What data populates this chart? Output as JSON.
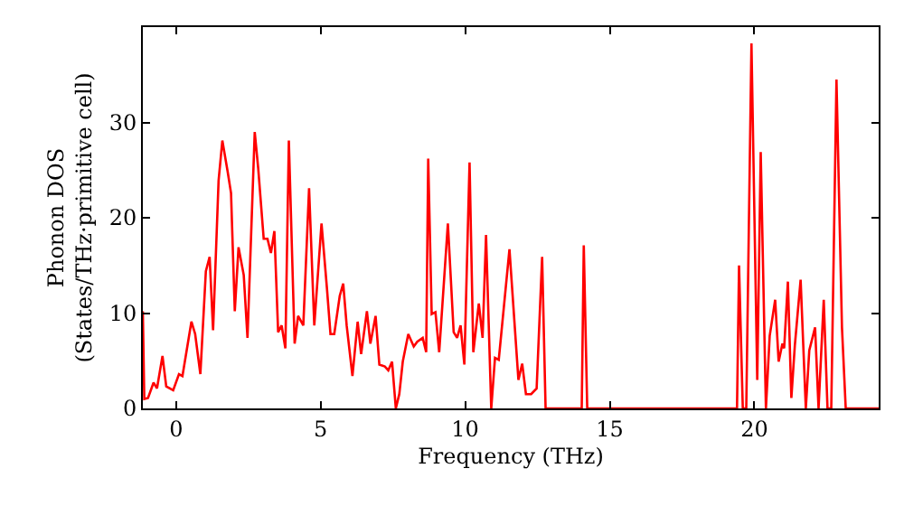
{
  "chart_data": {
    "type": "line",
    "xlabel": "Frequency (THz)",
    "ylabel": "Phonon DOS\n(States/THz·primitive cell)",
    "xlim": [
      -1.15,
      24.3
    ],
    "ylim": [
      0,
      40
    ],
    "xticks": [
      0,
      5,
      10,
      15,
      20
    ],
    "yticks": [
      0,
      10,
      20,
      30
    ],
    "marker": "none",
    "line_style": "solid",
    "series": [
      {
        "color": "#ff0000",
        "x": [
          -1.15,
          -1.1,
          -0.97,
          -0.78,
          -0.66,
          -0.47,
          -0.34,
          -0.1,
          0.1,
          0.22,
          0.53,
          0.66,
          0.84,
          1.03,
          1.16,
          1.28,
          1.47,
          1.6,
          1.78,
          1.9,
          2.03,
          2.16,
          2.34,
          2.47,
          2.72,
          2.84,
          3.03,
          3.16,
          3.28,
          3.4,
          3.53,
          3.65,
          3.78,
          3.9,
          4.1,
          4.22,
          4.4,
          4.6,
          4.78,
          5.03,
          5.22,
          5.34,
          5.47,
          5.66,
          5.78,
          5.9,
          6.1,
          6.28,
          6.4,
          6.6,
          6.72,
          6.9,
          7.03,
          7.22,
          7.34,
          7.47,
          7.6,
          7.72,
          7.84,
          8.03,
          8.22,
          8.34,
          8.53,
          8.65,
          8.72,
          8.84,
          8.97,
          9.1,
          9.4,
          9.6,
          9.72,
          9.84,
          9.97,
          10.15,
          10.28,
          10.47,
          10.6,
          10.72,
          10.9,
          11.03,
          11.16,
          11.53,
          11.84,
          11.97,
          12.1,
          12.28,
          12.47,
          12.66,
          12.78,
          14.03,
          14.1,
          14.22,
          19.4,
          19.47,
          19.6,
          19.72,
          19.9,
          20.1,
          20.22,
          20.4,
          20.53,
          20.72,
          20.84,
          20.97,
          21.03,
          21.16,
          21.28,
          21.4,
          21.6,
          21.78,
          21.9,
          22.1,
          22.22,
          22.4,
          22.53,
          22.66,
          22.84,
          23.03,
          23.16,
          24.3
        ],
        "values": [
          10.2,
          1,
          1.1,
          2.7,
          2.1,
          5.5,
          2.3,
          1.9,
          3.6,
          3.4,
          9.1,
          7.8,
          3.6,
          14.4,
          15.9,
          8.2,
          23.9,
          28.1,
          24.9,
          22.6,
          10.2,
          16.9,
          14.0,
          7.4,
          29.0,
          25.2,
          17.8,
          17.8,
          16.3,
          18.6,
          8.0,
          8.7,
          6.3,
          28.1,
          6.8,
          9.7,
          8.7,
          23.1,
          8.7,
          19.4,
          12.5,
          7.8,
          7.8,
          11.8,
          13.1,
          8.7,
          3.4,
          9.1,
          5.7,
          10.2,
          6.8,
          9.7,
          4.6,
          4.4,
          4.0,
          4.9,
          0,
          1.5,
          4.9,
          7.8,
          6.5,
          7.0,
          7.4,
          5.9,
          26.2,
          9.9,
          10.1,
          5.9,
          19.4,
          8.0,
          7.4,
          8.7,
          4.6,
          25.8,
          5.9,
          11.0,
          7.4,
          18.2,
          0,
          5.3,
          5.1,
          16.7,
          3.0,
          4.7,
          1.5,
          1.5,
          2.1,
          15.9,
          0,
          0,
          17.1,
          0,
          0,
          15.0,
          0,
          0,
          38.3,
          3.0,
          26.9,
          0,
          7.6,
          11.4,
          4.9,
          6.8,
          6.3,
          13.3,
          1.1,
          6.6,
          13.5,
          0,
          6.1,
          8.5,
          0,
          11.4,
          0,
          0,
          34.5,
          8.5,
          0,
          0
        ]
      }
    ]
  }
}
